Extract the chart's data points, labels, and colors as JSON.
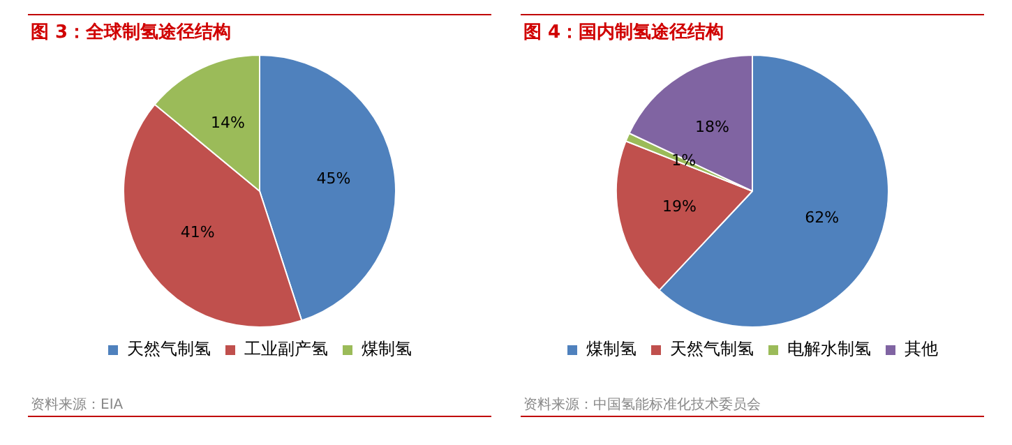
{
  "chart_data": [
    {
      "type": "pie",
      "title": "图 3：全球制氢途径结构",
      "categories": [
        "天然气制氢",
        "工业副产氢",
        "煤制氢"
      ],
      "values": [
        45,
        41,
        14
      ],
      "colors": [
        "#4f81bd",
        "#c0504d",
        "#9bbb59"
      ],
      "value_labels": [
        "45%",
        "41%",
        "14%"
      ],
      "legend": "bottom",
      "annotations": [
        "资料来源：EIA"
      ]
    },
    {
      "type": "pie",
      "title": "图 4：国内制氢途径结构",
      "categories": [
        "煤制氢",
        "天然气制氢",
        "电解水制氢",
        "其他"
      ],
      "values": [
        62,
        19,
        1,
        18
      ],
      "colors": [
        "#4f81bd",
        "#c0504d",
        "#9bbb59",
        "#8064a2"
      ],
      "value_labels": [
        "62%",
        "19%",
        "1%",
        "18%"
      ],
      "legend": "bottom",
      "annotations": [
        "资料来源：中国氢能标准化技术委员会"
      ]
    }
  ]
}
